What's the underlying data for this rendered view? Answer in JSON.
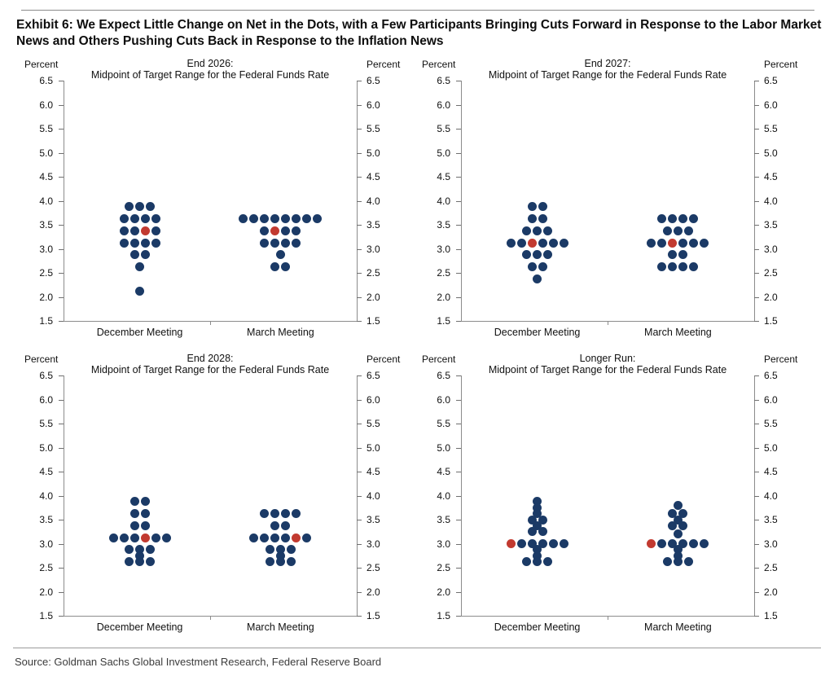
{
  "header": {
    "title": "Exhibit 6: We Expect Little Change on Net in the Dots, with a Few Participants Bringing Cuts Forward in Response to the Labor Market News and Others Pushing Cuts Back in Response to the Inflation News"
  },
  "footer": {
    "source": "Source: Goldman Sachs Global Investment Research, Federal Reserve Board"
  },
  "colors": {
    "dot_navy": "#1b3a66",
    "dot_red": "#c23a30",
    "axis_gray": "#8c8c8c",
    "text": "#111111"
  },
  "chart_data": {
    "type": "scatter",
    "unit_label": "Percent",
    "y_axis": {
      "min": 1.5,
      "max": 6.5,
      "step": 0.5,
      "ticks": [
        "6.5",
        "6.0",
        "5.5",
        "5.0",
        "4.5",
        "4.0",
        "3.5",
        "3.0",
        "2.5",
        "2.0",
        "1.5"
      ]
    },
    "x_categories": [
      "December Meeting",
      "March Meeting"
    ],
    "dot_row_format": "[rate_percent, dot_count, red_dot_position_1based_or_0]",
    "panels": [
      {
        "name": "End 2026:",
        "subtitle": "Midpoint of Target Range for the Federal Funds Rate",
        "meetings": [
          {
            "label": "December Meeting",
            "dots": [
              [
                3.875,
                3,
                0
              ],
              [
                3.625,
                4,
                0
              ],
              [
                3.375,
                4,
                3
              ],
              [
                3.125,
                4,
                0
              ],
              [
                2.875,
                2,
                0
              ],
              [
                2.625,
                1,
                0
              ],
              [
                2.125,
                1,
                0
              ]
            ]
          },
          {
            "label": "March Meeting",
            "dots": [
              [
                3.625,
                8,
                0
              ],
              [
                3.375,
                4,
                2
              ],
              [
                3.125,
                4,
                0
              ],
              [
                2.875,
                1,
                0
              ],
              [
                2.625,
                2,
                0
              ]
            ]
          }
        ]
      },
      {
        "name": "End 2027:",
        "subtitle": "Midpoint of Target Range for the Federal Funds Rate",
        "meetings": [
          {
            "label": "December Meeting",
            "dots": [
              [
                3.875,
                2,
                0
              ],
              [
                3.625,
                2,
                0
              ],
              [
                3.375,
                3,
                0
              ],
              [
                3.125,
                6,
                3
              ],
              [
                2.875,
                3,
                0
              ],
              [
                2.625,
                2,
                0
              ],
              [
                2.375,
                1,
                0
              ]
            ]
          },
          {
            "label": "March Meeting",
            "dots": [
              [
                3.625,
                4,
                0
              ],
              [
                3.375,
                3,
                0
              ],
              [
                3.125,
                6,
                3
              ],
              [
                2.875,
                2,
                0
              ],
              [
                2.625,
                4,
                0
              ]
            ]
          }
        ]
      },
      {
        "name": "End 2028:",
        "subtitle": "Midpoint of Target Range for the Federal Funds Rate",
        "meetings": [
          {
            "label": "December Meeting",
            "dots": [
              [
                3.875,
                2,
                0
              ],
              [
                3.625,
                2,
                0
              ],
              [
                3.375,
                2,
                0
              ],
              [
                3.125,
                6,
                4
              ],
              [
                2.875,
                3,
                0
              ],
              [
                2.75,
                1,
                0
              ],
              [
                2.625,
                3,
                0
              ]
            ]
          },
          {
            "label": "March Meeting",
            "dots": [
              [
                3.625,
                4,
                0
              ],
              [
                3.375,
                2,
                0
              ],
              [
                3.125,
                6,
                5
              ],
              [
                2.875,
                3,
                0
              ],
              [
                2.75,
                1,
                0
              ],
              [
                2.625,
                3,
                0
              ]
            ]
          }
        ]
      },
      {
        "name": "Longer Run:",
        "subtitle": "Midpoint of Target Range for the Federal Funds Rate",
        "meetings": [
          {
            "label": "December Meeting",
            "dots": [
              [
                3.875,
                1,
                0
              ],
              [
                3.75,
                1,
                0
              ],
              [
                3.625,
                1,
                0
              ],
              [
                3.5,
                2,
                0
              ],
              [
                3.375,
                1,
                0
              ],
              [
                3.25,
                2,
                0
              ],
              [
                3.0,
                6,
                1
              ],
              [
                2.875,
                1,
                0
              ],
              [
                2.75,
                1,
                0
              ],
              [
                2.625,
                3,
                0
              ]
            ]
          },
          {
            "label": "March Meeting",
            "dots": [
              [
                3.8,
                1,
                0
              ],
              [
                3.625,
                2,
                0
              ],
              [
                3.5,
                1,
                0
              ],
              [
                3.375,
                2,
                0
              ],
              [
                3.2,
                1,
                0
              ],
              [
                3.0,
                6,
                1
              ],
              [
                2.875,
                1,
                0
              ],
              [
                2.75,
                1,
                0
              ],
              [
                2.625,
                3,
                0
              ]
            ]
          }
        ]
      }
    ]
  }
}
